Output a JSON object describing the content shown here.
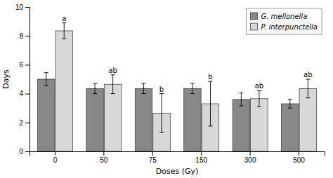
{
  "chart_data": {
    "type": "bar",
    "xlabel": "Doses (Gy)",
    "ylabel": "Days",
    "categories": [
      "0",
      "50",
      "75",
      "150",
      "300",
      "500"
    ],
    "series": [
      {
        "name": "G. mellonella",
        "color": "#888888",
        "values": [
          5.0,
          4.35,
          4.35,
          4.35,
          3.6,
          3.3
        ],
        "errors": [
          0.45,
          0.35,
          0.35,
          0.35,
          0.45,
          0.3
        ]
      },
      {
        "name": "P. interpunctella",
        "color": "#d8d8d8",
        "values": [
          8.35,
          4.65,
          2.65,
          3.3,
          3.65,
          4.35
        ],
        "errors": [
          0.55,
          0.65,
          1.35,
          1.55,
          0.55,
          0.65
        ],
        "annotations": [
          "a",
          "ab",
          "b",
          "b",
          "ab",
          "ab"
        ]
      }
    ],
    "ylim": [
      0,
      10
    ],
    "yticks": [
      0,
      2,
      4,
      6,
      8,
      10
    ],
    "legend": "upper right"
  }
}
